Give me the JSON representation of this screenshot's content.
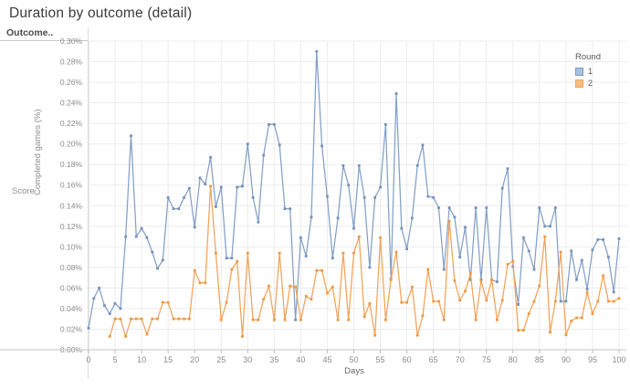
{
  "title": "Duration by outcome (detail)",
  "row_header": {
    "outcome_label": "Outcome..",
    "score_label": "Score"
  },
  "legend": {
    "title": "Round",
    "items": [
      {
        "label": "1",
        "fill": "#a9c0dc",
        "border": "#7e9cc5"
      },
      {
        "label": "2",
        "fill": "#f8bc7e",
        "border": "#eda65a"
      }
    ]
  },
  "axes": {
    "xlabel": "Days",
    "ylabel": "Completed games (%)",
    "x_ticks": [
      0,
      5,
      10,
      15,
      20,
      25,
      30,
      35,
      40,
      45,
      50,
      55,
      60,
      65,
      70,
      75,
      80,
      85,
      90,
      95,
      100
    ],
    "y_tick_interval": 0.02,
    "y_tick_format": "percent_2dp"
  },
  "chart_data": {
    "type": "line",
    "title": "Duration by outcome (detail)",
    "xlabel": "Days",
    "ylabel": "Completed games (%)",
    "xlim": [
      0,
      100
    ],
    "ylim": [
      0,
      0.3
    ],
    "grid": true,
    "legend_position": "right",
    "units": "percent",
    "series": [
      {
        "name": "1",
        "color": "#84a0c6",
        "marker_color": "#7492bc",
        "x_start": 0,
        "x_step": 1,
        "values": [
          0.021,
          0.05,
          0.06,
          0.043,
          0.035,
          0.045,
          0.04,
          0.11,
          0.208,
          0.11,
          0.118,
          0.109,
          0.095,
          0.079,
          0.087,
          0.148,
          0.137,
          0.137,
          0.148,
          0.157,
          0.119,
          0.167,
          0.161,
          0.187,
          0.139,
          0.158,
          0.089,
          0.089,
          0.158,
          0.159,
          0.2,
          0.148,
          0.124,
          0.189,
          0.219,
          0.219,
          0.199,
          0.137,
          0.137,
          0.029,
          0.109,
          0.091,
          0.129,
          0.29,
          0.198,
          0.149,
          0.089,
          0.128,
          0.179,
          0.16,
          0.118,
          0.179,
          0.148,
          0.08,
          0.148,
          0.158,
          0.219,
          0.069,
          0.249,
          0.118,
          0.098,
          0.128,
          0.179,
          0.199,
          0.149,
          0.148,
          0.138,
          0.078,
          0.138,
          0.129,
          0.09,
          0.119,
          0.068,
          0.138,
          0.068,
          0.138,
          0.068,
          0.066,
          0.157,
          0.176,
          0.081,
          0.044,
          0.109,
          0.096,
          0.078,
          0.138,
          0.12,
          0.12,
          0.138,
          0.047,
          0.047,
          0.096,
          0.068,
          0.087,
          0.059,
          0.097,
          0.107,
          0.107,
          0.09,
          0.056,
          0.108
        ]
      },
      {
        "name": "2",
        "color": "#f2a359",
        "marker_color": "#ef9843",
        "x_start": 4,
        "x_step": 1,
        "values": [
          0.013,
          0.03,
          0.03,
          0.013,
          0.03,
          0.03,
          0.03,
          0.015,
          0.03,
          0.03,
          0.046,
          0.046,
          0.03,
          0.03,
          0.03,
          0.03,
          0.077,
          0.065,
          0.065,
          0.159,
          0.094,
          0.029,
          0.046,
          0.078,
          0.086,
          0.013,
          0.094,
          0.029,
          0.029,
          0.049,
          0.062,
          0.029,
          0.094,
          0.029,
          0.062,
          0.061,
          0.029,
          0.052,
          0.049,
          0.077,
          0.077,
          0.055,
          0.061,
          0.029,
          0.094,
          0.029,
          0.094,
          0.11,
          0.032,
          0.045,
          0.014,
          0.109,
          0.029,
          0.068,
          0.095,
          0.046,
          0.046,
          0.061,
          0.014,
          0.033,
          0.078,
          0.047,
          0.047,
          0.029,
          0.125,
          0.067,
          0.048,
          0.057,
          0.074,
          0.029,
          0.067,
          0.048,
          0.068,
          0.029,
          0.048,
          0.083,
          0.086,
          0.019,
          0.019,
          0.035,
          0.047,
          0.062,
          0.11,
          0.017,
          0.047,
          0.095,
          0.0145,
          0.028,
          0.031,
          0.031,
          0.056,
          0.035,
          0.047,
          0.072,
          0.047,
          0.047,
          0.05
        ]
      }
    ]
  },
  "colors": {
    "gridline": "#ececec",
    "axis_line": "#c4c4c4",
    "tick_mark": "#bdbdbd",
    "tick_label": "#8a8a8a"
  }
}
